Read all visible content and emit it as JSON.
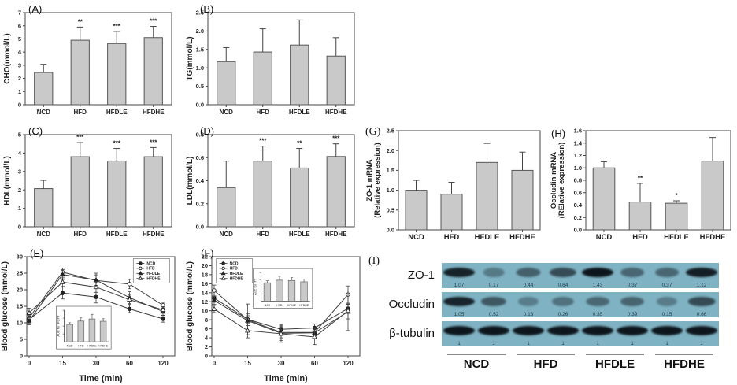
{
  "colors": {
    "bar_fill": "#c9c9c9",
    "bar_stroke": "#555555",
    "axis": "#444444",
    "blot_background": "#7fb2c2",
    "blot_band": "#0e161d",
    "blot_value_text": "#24424f"
  },
  "chart_data": [
    {
      "panel_label": "(A)",
      "type": "bar",
      "ylabel": "CHO(mmol/L)",
      "categories": [
        "NCD",
        "HFD",
        "HFDLE",
        "HFDHE"
      ],
      "values": [
        2.45,
        4.9,
        4.65,
        5.1
      ],
      "errors": [
        0.62,
        1.0,
        0.92,
        0.85
      ],
      "sig": [
        "",
        "**",
        "***",
        "***"
      ],
      "ylim": [
        0,
        7
      ],
      "yticks": [
        0,
        1,
        2,
        3,
        4,
        5,
        6,
        7
      ],
      "ytick_labels": [
        "0",
        "1",
        "2",
        "3",
        "4",
        "5",
        "6",
        "7"
      ]
    },
    {
      "panel_label": "(B)",
      "type": "bar",
      "ylabel": "TG(mmol/L)",
      "categories": [
        "NCD",
        "HFD",
        "HFDLE",
        "HFDHE"
      ],
      "values": [
        1.17,
        1.43,
        1.62,
        1.32
      ],
      "errors": [
        0.38,
        0.63,
        0.68,
        0.5
      ],
      "sig": [
        "",
        "",
        "",
        ""
      ],
      "ylim": [
        0,
        2.5
      ],
      "yticks": [
        0,
        0.5,
        1.0,
        1.5,
        2.0,
        2.5
      ],
      "ytick_labels": [
        "0.0",
        "0.5",
        "1.0",
        "1.5",
        "2.0",
        "2.5"
      ]
    },
    {
      "panel_label": "(C)",
      "type": "bar",
      "ylabel": "HDL(mmol/L)",
      "categories": [
        "NCD",
        "HFD",
        "HFDLE",
        "HFDHE"
      ],
      "values": [
        2.07,
        3.8,
        3.57,
        3.8
      ],
      "errors": [
        0.45,
        0.77,
        0.68,
        0.5
      ],
      "sig": [
        "",
        "***",
        "***",
        "***"
      ],
      "ylim": [
        0,
        5
      ],
      "yticks": [
        0,
        1,
        2,
        3,
        4,
        5
      ],
      "ytick_labels": [
        "0",
        "1",
        "2",
        "3",
        "4",
        "5"
      ]
    },
    {
      "panel_label": "(D)",
      "type": "bar",
      "ylabel": "LDL(mmol/L)",
      "categories": [
        "NCD",
        "HFD",
        "HFDLE",
        "HFDHE"
      ],
      "values": [
        0.34,
        0.57,
        0.51,
        0.61
      ],
      "errors": [
        0.23,
        0.13,
        0.17,
        0.11
      ],
      "sig": [
        "",
        "***",
        "**",
        "***"
      ],
      "ylim": [
        0,
        0.8
      ],
      "yticks": [
        0,
        0.2,
        0.4,
        0.6,
        0.8
      ],
      "ytick_labels": [
        "0.0",
        "0.2",
        "0.4",
        "0.6",
        "0.8"
      ]
    },
    {
      "panel_label": "(E)",
      "type": "line",
      "ylabel": "Blood glucose (mmol/L)",
      "xlabel": "Time (min)",
      "x": [
        "0",
        "15",
        "30",
        "60",
        "120"
      ],
      "ylim": [
        0,
        30
      ],
      "yticks": [
        0,
        5,
        10,
        15,
        20,
        25,
        30
      ],
      "ytick_labels": [
        "0",
        "5",
        "10",
        "15",
        "20",
        "25",
        "30"
      ],
      "series": [
        {
          "name": "NCD",
          "marker": "filled-circle",
          "values": [
            11.0,
            19.0,
            17.8,
            14.2,
            11.2
          ],
          "errors": [
            1.2,
            1.8,
            1.8,
            1.1,
            1.0
          ]
        },
        {
          "name": "HFD",
          "marker": "open-circle",
          "values": [
            11.5,
            25.3,
            22.8,
            21.7,
            15.3
          ],
          "errors": [
            1.0,
            1.2,
            2.2,
            1.4,
            0.9
          ]
        },
        {
          "name": "HFDLE",
          "marker": "filled-triangle",
          "values": [
            10.6,
            24.6,
            22.9,
            17.6,
            13.4
          ],
          "errors": [
            1.2,
            1.5,
            1.6,
            1.8,
            1.1
          ]
        },
        {
          "name": "HFDHE",
          "marker": "open-triangle",
          "values": [
            13.0,
            22.3,
            20.8,
            17.0,
            13.9
          ],
          "errors": [
            1.4,
            1.3,
            1.6,
            1.4,
            1.0
          ]
        }
      ],
      "legend": {
        "position": "top-right",
        "x": 0.72,
        "y": 0.02
      },
      "inset": {
        "ylabel": "AUC for IPGTT",
        "categories": [
          "NCD",
          "HFD",
          "HFDLE",
          "HFDHE"
        ],
        "values": [
          8.3,
          9.9,
          10.9,
          9.8
        ],
        "errors": [
          0.8,
          1.5,
          2.2,
          1.2
        ],
        "px": 0.2,
        "py": 0.5,
        "pw": 0.37,
        "ph": 0.43
      }
    },
    {
      "panel_label": "(F)",
      "type": "line",
      "ylabel": "Blood glucose (mmol/L)",
      "xlabel": "Time (min)",
      "x": [
        "0",
        "15",
        "30",
        "60",
        "120"
      ],
      "ylim": [
        0,
        22
      ],
      "yticks": [
        0,
        2,
        4,
        6,
        8,
        10,
        12,
        14,
        16,
        18,
        20,
        22
      ],
      "ytick_labels": [
        "0",
        "2",
        "4",
        "6",
        "8",
        "10",
        "12",
        "14",
        "16",
        "18",
        "20",
        "22"
      ],
      "series": [
        {
          "name": "NCD",
          "marker": "filled-circle",
          "values": [
            12.8,
            8.1,
            5.9,
            6.2,
            10.5
          ],
          "errors": [
            0.9,
            3.4,
            1.1,
            0.9,
            1.0
          ]
        },
        {
          "name": "HFD",
          "marker": "open-circle",
          "values": [
            14.5,
            8.0,
            5.2,
            5.2,
            13.6
          ],
          "errors": [
            1.2,
            1.3,
            1.2,
            1.1,
            1.9
          ]
        },
        {
          "name": "HFDLE",
          "marker": "filled-triangle",
          "values": [
            12.3,
            7.8,
            5.0,
            5.1,
            9.8
          ],
          "errors": [
            0.9,
            1.1,
            1.6,
            1.2,
            1.6
          ]
        },
        {
          "name": "HFDHE",
          "marker": "open-triangle",
          "values": [
            10.4,
            5.6,
            4.9,
            4.2,
            10.0
          ],
          "errors": [
            0.8,
            1.6,
            1.9,
            1.7,
            4.4
          ]
        }
      ],
      "legend": {
        "position": "top-left",
        "x": 0.03,
        "y": 0.02
      },
      "inset": {
        "ylabel": "AUC for ITT",
        "categories": [
          "NCD",
          "HFD",
          "HFDLE",
          "HFDHE"
        ],
        "values": [
          5.6,
          6.4,
          6.3,
          5.9
        ],
        "errors": [
          0.6,
          1.2,
          0.9,
          0.8
        ],
        "px": 0.28,
        "py": 0.12,
        "pw": 0.4,
        "ph": 0.4
      }
    },
    {
      "panel_label": "(G)",
      "type": "bar",
      "ylabel": [
        "ZO-1 mRNA",
        "(Relative expression)"
      ],
      "categories": [
        "NCD",
        "HFD",
        "HFDLE",
        "HFDHE"
      ],
      "values": [
        1.0,
        0.9,
        1.7,
        1.5
      ],
      "errors": [
        0.25,
        0.3,
        0.48,
        0.46
      ],
      "sig": [
        "",
        "",
        "",
        ""
      ],
      "ylim": [
        0,
        2.5
      ],
      "yticks": [
        0,
        0.5,
        1.0,
        1.5,
        2.0,
        2.5
      ],
      "ytick_labels": [
        "0.0",
        "0.5",
        "1.0",
        "1.5",
        "2.0",
        "2.5"
      ]
    },
    {
      "panel_label": "(H)",
      "type": "bar",
      "ylabel": [
        "Occludin mRNA",
        "(RElative expression)"
      ],
      "categories": [
        "NCD",
        "HFD",
        "HFDLE",
        "HFDHE"
      ],
      "values": [
        1.0,
        0.45,
        0.43,
        1.11
      ],
      "errors": [
        0.1,
        0.3,
        0.04,
        0.38
      ],
      "sig": [
        "",
        "**",
        "*",
        ""
      ],
      "ylim": [
        0,
        1.6
      ],
      "yticks": [
        0,
        0.2,
        0.4,
        0.6,
        0.8,
        1.0,
        1.2,
        1.4,
        1.6
      ],
      "ytick_labels": [
        "0.0",
        "0.2",
        "0.4",
        "0.6",
        "0.8",
        "1.0",
        "1.2",
        "1.4",
        "1.6"
      ]
    }
  ],
  "western_blot": {
    "panel_label": "(I)",
    "rows": [
      {
        "label": "ZO-1",
        "values": [
          1.07,
          0.17,
          0.44,
          0.64,
          1.43,
          0.37,
          0.37,
          1.12
        ]
      },
      {
        "label": "Occludin",
        "values": [
          1.05,
          0.52,
          0.13,
          0.26,
          0.35,
          0.39,
          0.15,
          0.66
        ]
      },
      {
        "label": "β-tubulin",
        "values": [
          1,
          1,
          1,
          1,
          1,
          1,
          1,
          1
        ],
        "band_boost": 0.4
      }
    ],
    "groups": [
      "NCD",
      "HFD",
      "HFDLE",
      "HFDHE"
    ]
  }
}
